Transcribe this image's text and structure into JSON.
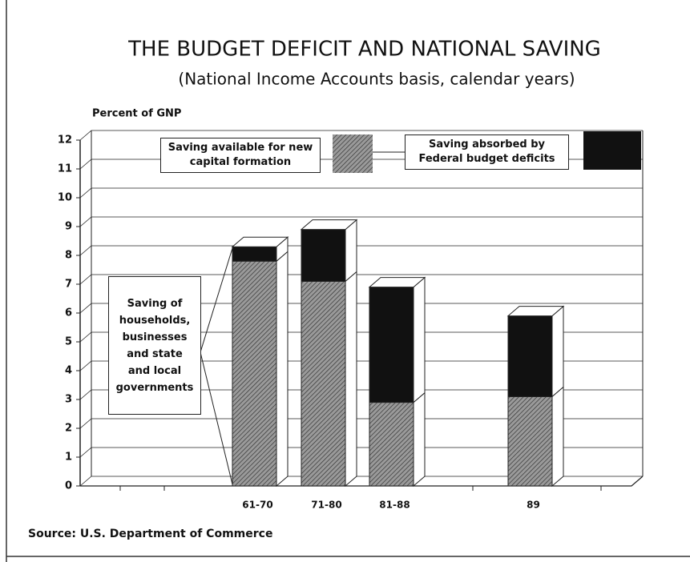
{
  "chart_data": {
    "type": "bar3d_stacked",
    "title": "THE BUDGET DEFICIT AND NATIONAL SAVING",
    "subtitle": "(National Income Accounts basis, calendar years)",
    "y_label": "Percent of GNP",
    "source": "Source: U.S. Department of Commerce",
    "annotation": "Saving of households, businesses and state and local governments",
    "categories": [
      "61-70",
      "71-80",
      "81-88",
      "89"
    ],
    "series": [
      {
        "name": "Saving available for new capital formation",
        "color": "#8c8c8c",
        "hatch": true,
        "values": [
          7.8,
          7.1,
          2.9,
          3.1
        ]
      },
      {
        "name": "Saving absorbed by Federal budget deficits",
        "color": "#111111",
        "hatch": false,
        "values": [
          0.5,
          1.8,
          4.0,
          2.8
        ]
      }
    ],
    "ylim": [
      0,
      12
    ],
    "yticks": [
      0,
      1,
      2,
      3,
      4,
      5,
      6,
      7,
      8,
      9,
      10,
      11,
      12
    ],
    "grid": true
  }
}
